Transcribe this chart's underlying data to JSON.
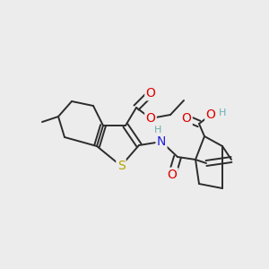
{
  "background_color": "#ececec",
  "figsize": [
    3.0,
    3.0
  ],
  "dpi": 100,
  "bond_color": "#2c2c2c",
  "bond_lw": 1.4,
  "atom_colors": {
    "O": "#dd0000",
    "N": "#2020dd",
    "S": "#b8a000",
    "H_teal": "#6aafaf",
    "C": "#2c2c2c"
  }
}
